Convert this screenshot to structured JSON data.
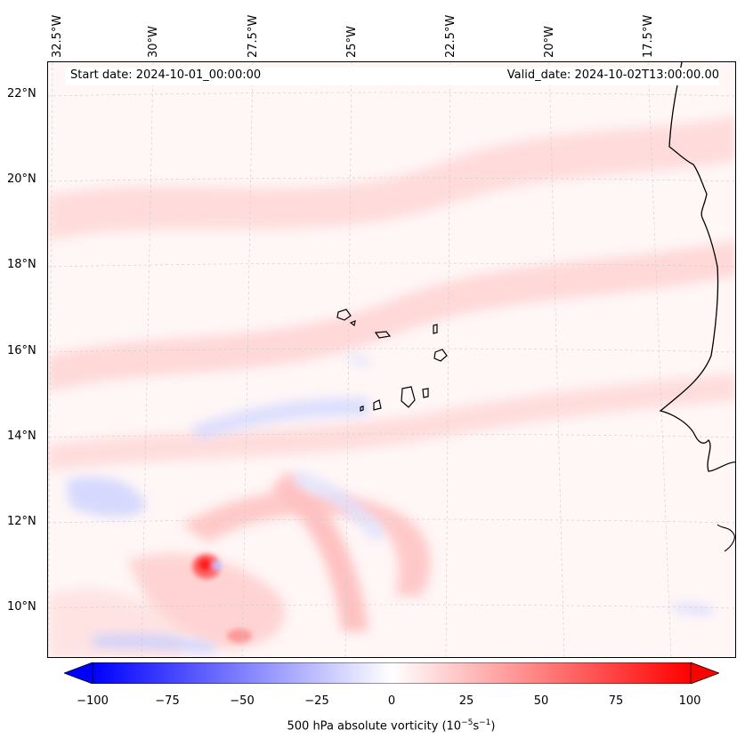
{
  "map": {
    "longitude_labels": [
      "32.5°W",
      "30°W",
      "27.5°W",
      "25°W",
      "22.5°W",
      "20°W",
      "17.5°W"
    ],
    "latitude_labels": [
      "22°N",
      "20°N",
      "18°N",
      "16°N",
      "14°N",
      "12°N",
      "10°N"
    ],
    "start_date": "Start date: 2024-10-01_00:00:00",
    "valid_date": "Valid_date: 2024-10-02T13:00:00.00"
  },
  "colorbar": {
    "ticks": [
      "−100",
      "−75",
      "−50",
      "−25",
      "0",
      "25",
      "50",
      "75",
      "100"
    ],
    "label": "500 hPa absolute vorticity (10",
    "label_exp1": "−5",
    "label_mid": "s",
    "label_exp2": "−1",
    "label_end": ")",
    "min": -100,
    "max": 100,
    "negative_color": "#0000ff",
    "positive_color": "#ff0000"
  }
}
